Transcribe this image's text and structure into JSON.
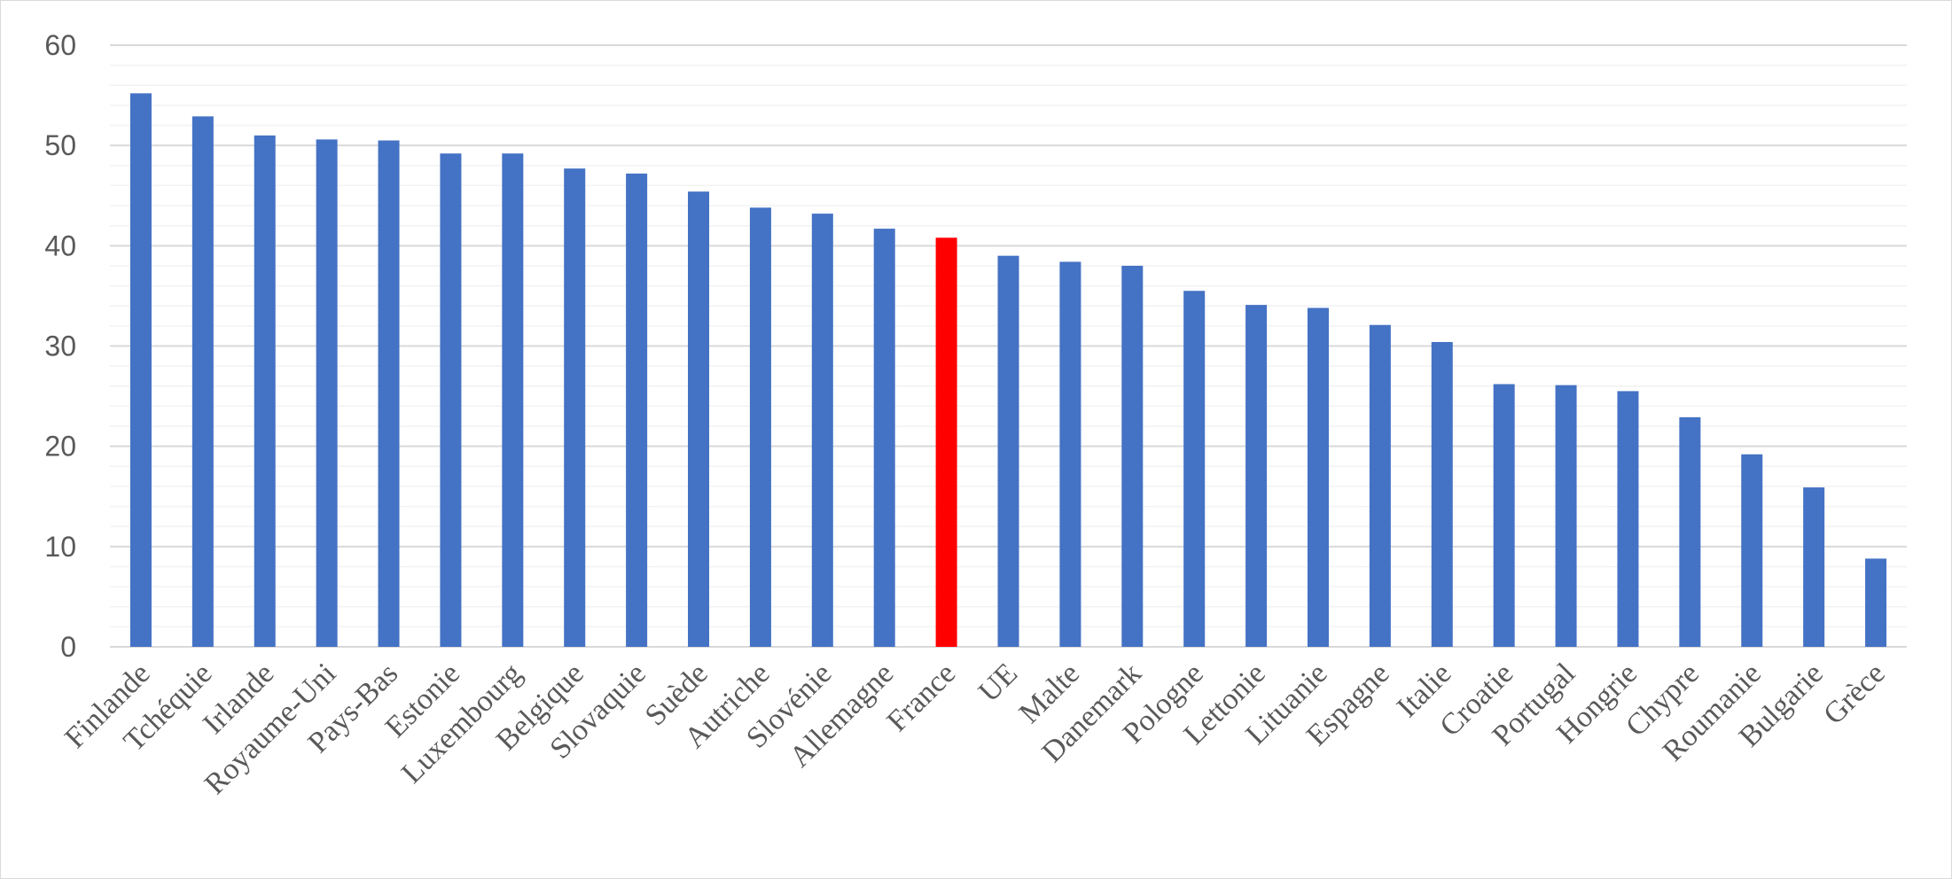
{
  "chart_data": {
    "type": "bar",
    "title": "",
    "xlabel": "",
    "ylabel": "",
    "ylim": [
      0,
      60
    ],
    "yticks": [
      0,
      10,
      20,
      30,
      40,
      50,
      60
    ],
    "grid": true,
    "legend": "none",
    "categories": [
      "Finlande",
      "Tchéquie",
      "Irlande",
      "Royaume-Uni",
      "Pays-Bas",
      "Estonie",
      "Luxembourg",
      "Belgique",
      "Slovaquie",
      "Suède",
      "Autriche",
      "Slovénie",
      "Allemagne",
      "France",
      "UE",
      "Malte",
      "Danemark",
      "Pologne",
      "Lettonie",
      "Lituanie",
      "Espagne",
      "Italie",
      "Croatie",
      "Portugal",
      "Hongrie",
      "Chypre",
      "Roumanie",
      "Bulgarie",
      "Grèce"
    ],
    "values": [
      55.2,
      52.9,
      51.0,
      50.6,
      50.5,
      49.2,
      49.2,
      47.7,
      47.2,
      45.4,
      43.8,
      43.2,
      41.7,
      40.8,
      39.0,
      38.4,
      38.0,
      35.5,
      34.1,
      33.8,
      32.1,
      30.4,
      26.2,
      26.1,
      25.5,
      22.9,
      19.2,
      15.9,
      8.8
    ],
    "colors": {
      "default": "#4472c4",
      "highlight": "#ff0000",
      "highlight_category": "France",
      "grid_major": "#d9d9d9",
      "grid_minor": "#f2f2f2",
      "text": "#595959"
    }
  }
}
